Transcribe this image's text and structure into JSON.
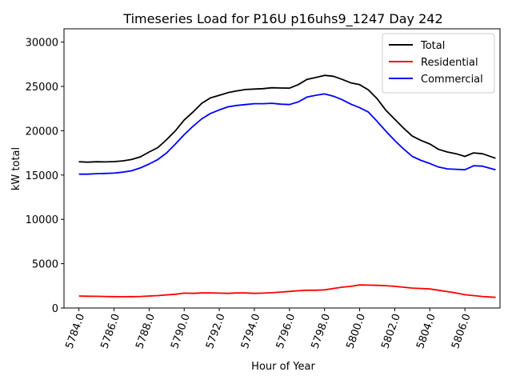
{
  "chart_data": {
    "type": "line",
    "title": "Timeseries Load for P16U p16uhs9_1247  Day 242",
    "xlabel": "Hour of Year",
    "ylabel": "kW total",
    "xlim": [
      5783.15,
      5808.0
    ],
    "ylim": [
      0,
      31500
    ],
    "xticks": [
      5784,
      5786,
      5788,
      5790,
      5792,
      5794,
      5796,
      5798,
      5800,
      5802,
      5804,
      5806
    ],
    "xtick_labels": [
      "5784.0",
      "5786.0",
      "5788.0",
      "5790.0",
      "5792.0",
      "5794.0",
      "5796.0",
      "5798.0",
      "5800.0",
      "5802.0",
      "5804.0",
      "5806.0"
    ],
    "yticks": [
      0,
      5000,
      10000,
      15000,
      20000,
      25000,
      30000
    ],
    "ytick_labels": [
      "0",
      "5000",
      "10000",
      "15000",
      "20000",
      "25000",
      "30000"
    ],
    "legend_position": "top-right",
    "series": [
      {
        "name": "Total",
        "color": "#000000",
        "x": [
          5784,
          5784.5,
          5785,
          5785.5,
          5786,
          5786.5,
          5787,
          5787.5,
          5788,
          5788.5,
          5789,
          5789.5,
          5790,
          5790.5,
          5791,
          5791.5,
          5792,
          5792.5,
          5793,
          5793.5,
          5794,
          5794.5,
          5795,
          5795.5,
          5796,
          5796.5,
          5797,
          5797.5,
          5798,
          5798.5,
          5799,
          5799.5,
          5800,
          5800.5,
          5801,
          5801.5,
          5802,
          5802.5,
          5803,
          5803.5,
          5804,
          5804.5,
          5805,
          5805.5,
          5806,
          5806.5,
          5807,
          5807.75
        ],
        "values": [
          16500,
          16450,
          16500,
          16480,
          16520,
          16600,
          16750,
          17050,
          17600,
          18100,
          19000,
          20000,
          21200,
          22100,
          23100,
          23700,
          24000,
          24300,
          24500,
          24650,
          24700,
          24750,
          24850,
          24820,
          24800,
          25200,
          25800,
          26000,
          26250,
          26150,
          25800,
          25400,
          25200,
          24600,
          23600,
          22300,
          21300,
          20300,
          19400,
          18900,
          18500,
          17900,
          17600,
          17400,
          17100,
          17500,
          17400,
          16900
        ]
      },
      {
        "name": "Residential",
        "color": "#ff0000",
        "x": [
          5784,
          5784.5,
          5785,
          5785.5,
          5786,
          5786.5,
          5787,
          5787.5,
          5788,
          5788.5,
          5789,
          5789.5,
          5790,
          5790.5,
          5791,
          5791.5,
          5792,
          5792.5,
          5793,
          5793.5,
          5794,
          5794.5,
          5795,
          5795.5,
          5796,
          5796.5,
          5797,
          5797.5,
          5798,
          5798.5,
          5799,
          5799.5,
          5800,
          5800.5,
          5801,
          5801.5,
          5802,
          5802.5,
          5803,
          5803.5,
          5804,
          5804.5,
          5805,
          5805.5,
          5806,
          5806.5,
          5807,
          5807.75
        ],
        "values": [
          1350,
          1330,
          1320,
          1300,
          1280,
          1270,
          1280,
          1300,
          1350,
          1400,
          1480,
          1550,
          1680,
          1650,
          1700,
          1700,
          1680,
          1650,
          1700,
          1700,
          1650,
          1680,
          1720,
          1800,
          1870,
          1950,
          2000,
          2000,
          2050,
          2200,
          2350,
          2450,
          2600,
          2580,
          2550,
          2520,
          2450,
          2350,
          2250,
          2200,
          2150,
          2000,
          1850,
          1700,
          1500,
          1400,
          1300,
          1200
        ]
      },
      {
        "name": "Commercial",
        "color": "#0000ff",
        "x": [
          5784,
          5784.5,
          5785,
          5785.5,
          5786,
          5786.5,
          5787,
          5787.5,
          5788,
          5788.5,
          5789,
          5789.5,
          5790,
          5790.5,
          5791,
          5791.5,
          5792,
          5792.5,
          5793,
          5793.5,
          5794,
          5794.5,
          5795,
          5795.5,
          5796,
          5796.5,
          5797,
          5797.5,
          5798,
          5798.5,
          5799,
          5799.5,
          5800,
          5800.5,
          5801,
          5801.5,
          5802,
          5802.5,
          5803,
          5803.5,
          5804,
          5804.5,
          5805,
          5805.5,
          5806,
          5806.5,
          5807,
          5807.75
        ],
        "values": [
          15100,
          15100,
          15150,
          15180,
          15220,
          15330,
          15480,
          15800,
          16250,
          16750,
          17500,
          18500,
          19550,
          20500,
          21350,
          21950,
          22350,
          22700,
          22850,
          22950,
          23050,
          23050,
          23100,
          23000,
          22950,
          23250,
          23800,
          24000,
          24150,
          23900,
          23500,
          23000,
          22600,
          22100,
          21050,
          19950,
          18900,
          17950,
          17100,
          16650,
          16300,
          15900,
          15700,
          15650,
          15600,
          16050,
          16000,
          15600
        ]
      }
    ]
  }
}
